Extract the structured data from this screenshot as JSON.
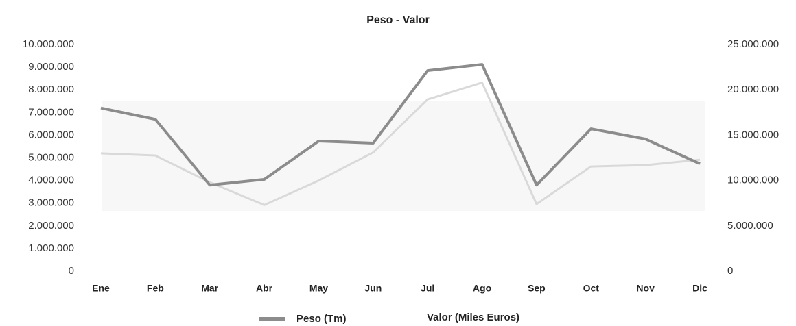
{
  "chart_data": {
    "type": "line",
    "title": "Peso - Valor",
    "categories": [
      "Ene",
      "Feb",
      "Mar",
      "Abr",
      "May",
      "Jun",
      "Jul",
      "Ago",
      "Sep",
      "Oct",
      "Nov",
      "Dic"
    ],
    "series": [
      {
        "name": "Peso (Tm)",
        "color": "#8c8c8c",
        "values": [
          7200000,
          6700000,
          3800000,
          4050000,
          5740000,
          5650000,
          8850000,
          9120000,
          3800000,
          6280000,
          5830000,
          4740000
        ]
      },
      {
        "name": "Valor (Miles Euros)",
        "color": "#d9d9d9",
        "axis": "y2",
        "values": [
          13000000,
          12760000,
          9800000,
          7300000,
          10000000,
          13100000,
          18950000,
          20800000,
          7400000,
          11550000,
          11700000,
          12300000
        ]
      }
    ],
    "ylim": [
      0,
      10000000
    ],
    "yticks": [
      0,
      {
        "value": 1000000,
        "label": "1.000.000"
      },
      {
        "value": 2000000,
        "label": "2.000.000"
      },
      {
        "value": 3000000,
        "label": "3.000.000"
      },
      {
        "value": 4000000,
        "label": "4.000.000"
      },
      {
        "value": 5000000,
        "label": "5.000.000"
      },
      {
        "value": 6000000,
        "label": "6.000.000"
      },
      {
        "value": 7000000,
        "label": "7.000.000"
      },
      {
        "value": 8000000,
        "label": "8.000.000"
      },
      {
        "value": 9000000,
        "label": "9.000.000"
      },
      {
        "value": 10000000,
        "label": "10.000.000"
      }
    ],
    "y2lim": [
      0,
      25000000
    ],
    "y2ticks": [
      0,
      {
        "value": 5000000,
        "label": "5.000.000"
      },
      {
        "value": 10000000,
        "label": "10.000.000"
      },
      {
        "value": 15000000,
        "label": "15.000.000"
      },
      {
        "value": 20000000,
        "label": "20.000.000"
      },
      {
        "value": 25000000,
        "label": "25.000.000"
      }
    ]
  }
}
